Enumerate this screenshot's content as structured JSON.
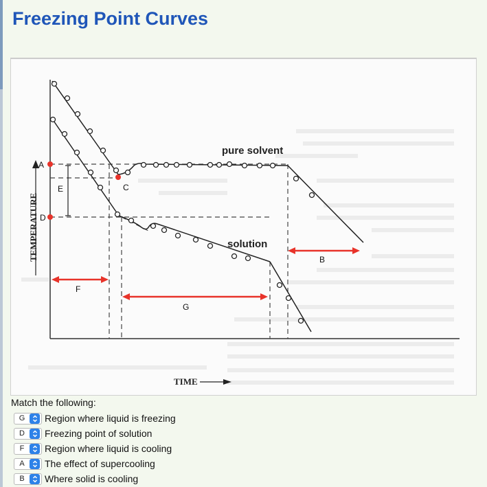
{
  "header": {
    "title": "Freezing Point Curves"
  },
  "figure": {
    "axis_y_label": "TEMPERATURE",
    "axis_x_label": "TIME",
    "curve_labels": {
      "pure_solvent": "pure solvent",
      "solution": "solution"
    },
    "markers": {
      "A": "A",
      "B": "B",
      "C": "C",
      "D": "D",
      "E": "E",
      "F": "F",
      "G": "G"
    }
  },
  "question": {
    "instruction": "Match the following:",
    "items": [
      {
        "selected": "G",
        "text": "Region where liquid is freezing"
      },
      {
        "selected": "D",
        "text": "Freezing point of solution"
      },
      {
        "selected": "F",
        "text": "Region where liquid is cooling"
      },
      {
        "selected": "A",
        "text": "The effect of supercooling"
      },
      {
        "selected": "B",
        "text": "Where solid is cooling"
      }
    ]
  },
  "colors": {
    "title": "#1f56b8",
    "marker": "#e8332a",
    "select_arrow": "#2e82e8"
  }
}
